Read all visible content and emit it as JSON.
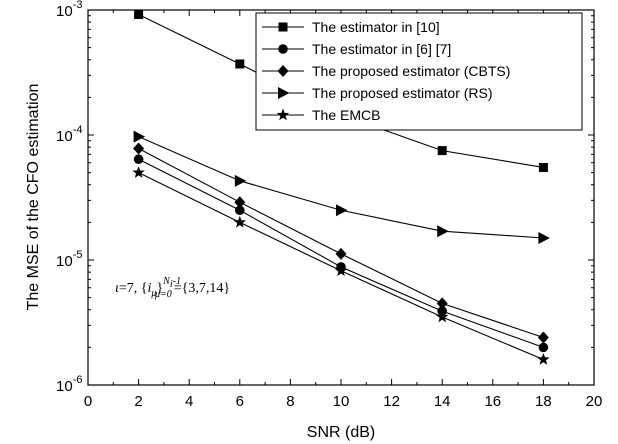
{
  "chart_data": {
    "type": "line",
    "title": "",
    "xlabel": "SNR (dB)",
    "ylabel": "The MSE of the CFO estimation",
    "xlim": [
      0,
      20
    ],
    "ylim": [
      1e-06,
      0.001
    ],
    "yscale": "log",
    "grid": false,
    "legend_position": "top-right",
    "x_ticks": [
      "0",
      "2",
      "4",
      "6",
      "8",
      "10",
      "12",
      "14",
      "16",
      "18",
      "20"
    ],
    "y_ticks": [
      {
        "base": "10",
        "exp": "-3",
        "value": 0.001
      },
      {
        "base": "10",
        "exp": "-4",
        "value": 0.0001
      },
      {
        "base": "10",
        "exp": "-5",
        "value": 1e-05
      },
      {
        "base": "10",
        "exp": "-6",
        "value": 1e-06
      }
    ],
    "x": [
      2,
      6,
      10,
      14,
      18
    ],
    "series": [
      {
        "name": "The estimator in [10]",
        "marker": "square",
        "values": [
          0.00092,
          0.00037,
          0.000145,
          7.5e-05,
          5.5e-05
        ]
      },
      {
        "name": "The estimator in [6] [7]",
        "marker": "circle",
        "values": [
          6.4e-05,
          2.5e-05,
          8.8e-06,
          3.9e-06,
          2e-06
        ]
      },
      {
        "name": "The proposed estimator (CBTS)",
        "marker": "diamond",
        "values": [
          7.8e-05,
          2.9e-05,
          1.12e-05,
          4.5e-06,
          2.4e-06
        ]
      },
      {
        "name": "The proposed estimator (RS)",
        "marker": "triangle-right",
        "values": [
          9.7e-05,
          4.3e-05,
          2.5e-05,
          1.7e-05,
          1.5e-05
        ]
      },
      {
        "name": "The EMCB",
        "marker": "star",
        "values": [
          5e-05,
          2e-05,
          8.2e-06,
          3.5e-06,
          1.6e-06
        ]
      }
    ],
    "annotation": {
      "iota": "ι",
      "eq1": "=7, {",
      "i": "i",
      "mu": "μ",
      "close": "}",
      "sup": "N",
      "sup_sub": "i",
      "sup_rest": "-1",
      "sub": "μ=0",
      "eq2": "={3,7,14}"
    }
  }
}
